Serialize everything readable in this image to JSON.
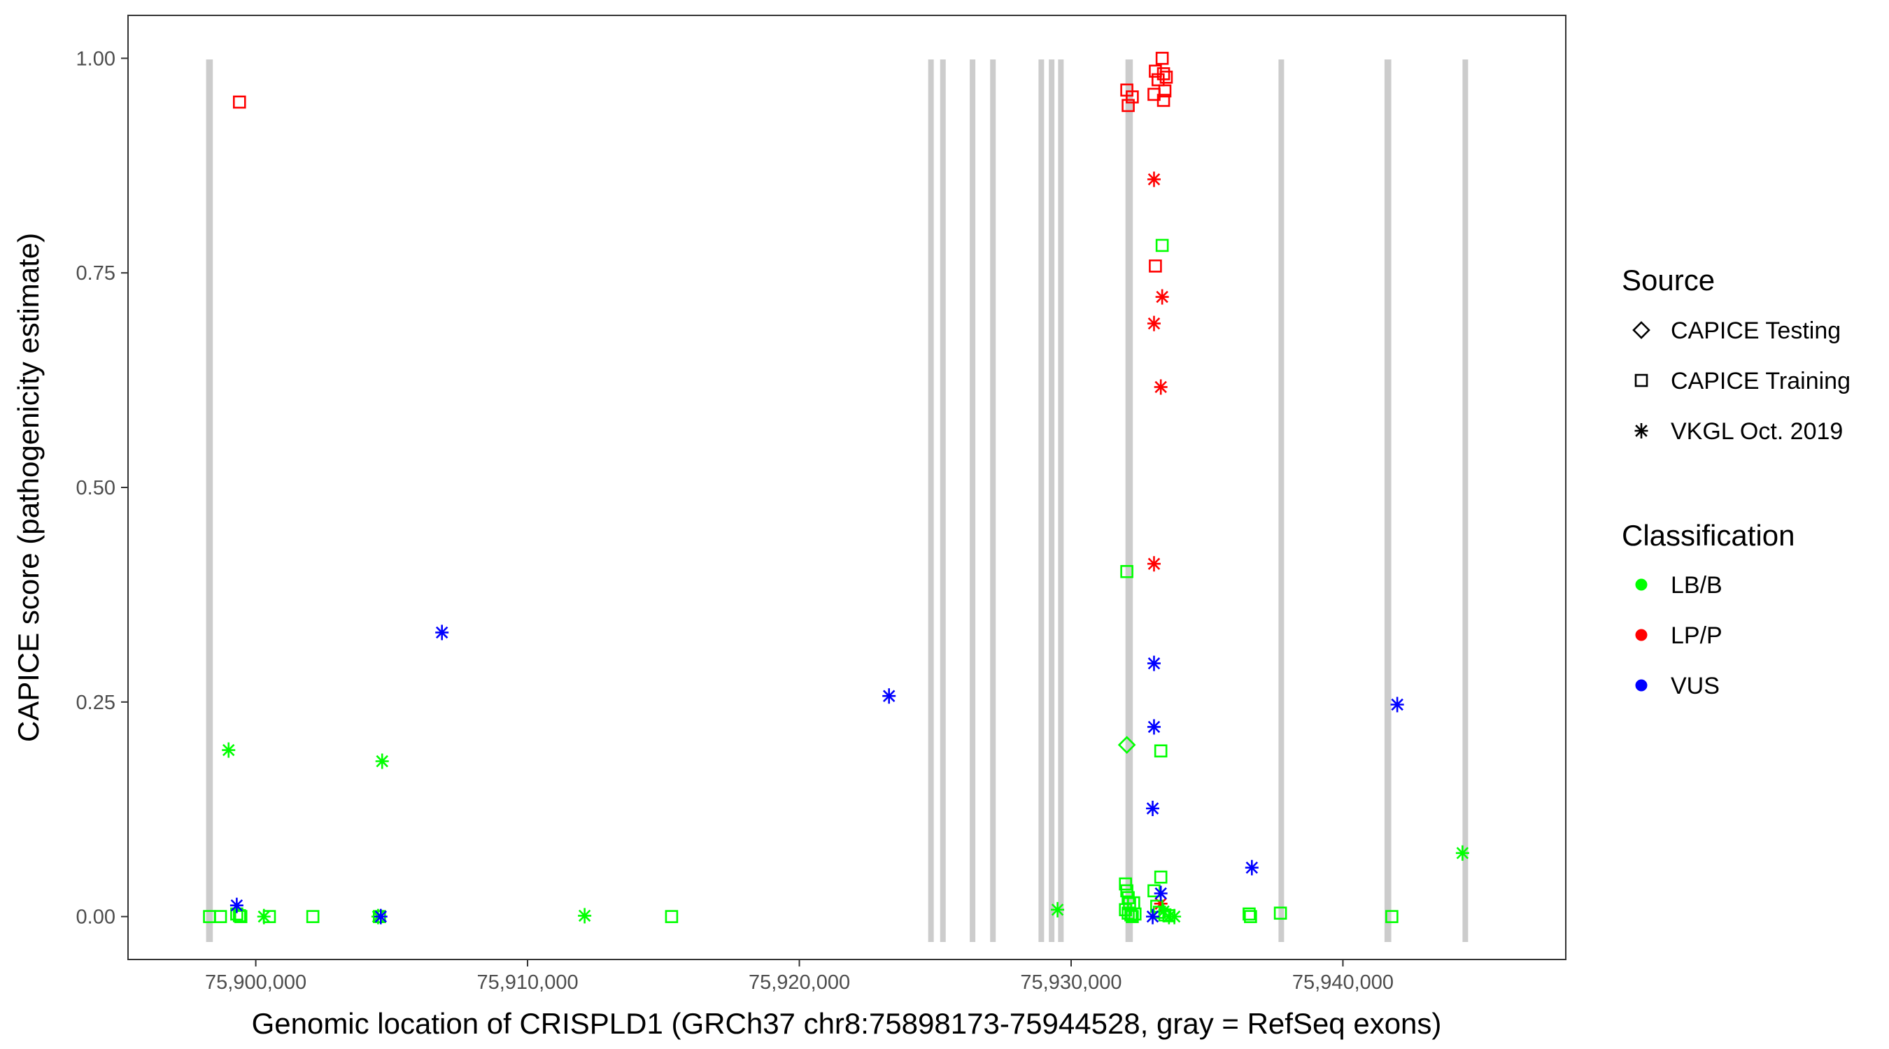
{
  "chart_data": {
    "type": "scatter",
    "title": "",
    "xlabel": "Genomic location of CRISPLD1 (GRCh37 chr8:75898173-75944528, gray = RefSeq exons)",
    "ylabel": "CAPICE score (pathogenicity estimate)",
    "xlim": [
      75895300,
      75948200
    ],
    "ylim": [
      -0.05,
      1.05
    ],
    "x_ticks": [
      75900000,
      75910000,
      75920000,
      75930000,
      75940000
    ],
    "x_tick_labels": [
      "75,900,000",
      "75,910,000",
      "75,920,000",
      "75,930,000",
      "75,940,000"
    ],
    "y_ticks": [
      0,
      0.25,
      0.5,
      0.75,
      1
    ],
    "y_tick_labels": [
      "0.00",
      "0.25",
      "0.50",
      "0.75",
      "1.00"
    ],
    "grid": false,
    "exons": [
      [
        75898173,
        75898420
      ],
      [
        75924740,
        75924900
      ],
      [
        75925180,
        75925360
      ],
      [
        75926270,
        75926440
      ],
      [
        75927020,
        75927180
      ],
      [
        75928800,
        75928980
      ],
      [
        75929180,
        75929360
      ],
      [
        75929520,
        75929700
      ],
      [
        75932000,
        75932270
      ],
      [
        75937630,
        75937790
      ],
      [
        75941530,
        75941780
      ],
      [
        75944400,
        75944528
      ]
    ],
    "legend": {
      "position": "right",
      "source_title": "Source",
      "source_items": [
        {
          "label": "CAPICE Testing",
          "shape": "diamond"
        },
        {
          "label": "CAPICE Training",
          "shape": "square"
        },
        {
          "label": "VKGL Oct. 2019",
          "shape": "asterisk"
        }
      ],
      "class_title": "Classification",
      "class_items": [
        {
          "label": "LB/B",
          "color": "#00ff00"
        },
        {
          "label": "LP/P",
          "color": "#ff0000"
        },
        {
          "label": "VUS",
          "color": "#0000ff"
        }
      ]
    },
    "colors": {
      "LB/B": "#00ff00",
      "LP/P": "#ff0000",
      "VUS": "#0000ff",
      "exon": "#cccccc"
    },
    "points": [
      {
        "x": 75899400,
        "y": 0.949,
        "source": "CAPICE Training",
        "class": "LP/P"
      },
      {
        "x": 75932050,
        "y": 0.963,
        "source": "CAPICE Training",
        "class": "LP/P"
      },
      {
        "x": 75932100,
        "y": 0.945,
        "source": "CAPICE Training",
        "class": "LP/P"
      },
      {
        "x": 75932250,
        "y": 0.955,
        "source": "CAPICE Training",
        "class": "LP/P"
      },
      {
        "x": 75933050,
        "y": 0.958,
        "source": "CAPICE Training",
        "class": "LP/P"
      },
      {
        "x": 75933100,
        "y": 0.985,
        "source": "CAPICE Training",
        "class": "LP/P"
      },
      {
        "x": 75933200,
        "y": 0.975,
        "source": "CAPICE Training",
        "class": "LP/P"
      },
      {
        "x": 75933350,
        "y": 1.0,
        "source": "CAPICE Training",
        "class": "LP/P"
      },
      {
        "x": 75933400,
        "y": 0.982,
        "source": "CAPICE Training",
        "class": "LP/P"
      },
      {
        "x": 75933450,
        "y": 0.962,
        "source": "CAPICE Training",
        "class": "LP/P"
      },
      {
        "x": 75933400,
        "y": 0.951,
        "source": "CAPICE Training",
        "class": "LP/P"
      },
      {
        "x": 75933500,
        "y": 0.978,
        "source": "CAPICE Training",
        "class": "LP/P"
      },
      {
        "x": 75933100,
        "y": 0.758,
        "source": "CAPICE Training",
        "class": "LP/P"
      },
      {
        "x": 75933050,
        "y": 0.859,
        "source": "VKGL Oct. 2019",
        "class": "LP/P"
      },
      {
        "x": 75933350,
        "y": 0.722,
        "source": "VKGL Oct. 2019",
        "class": "LP/P"
      },
      {
        "x": 75933050,
        "y": 0.691,
        "source": "VKGL Oct. 2019",
        "class": "LP/P"
      },
      {
        "x": 75933300,
        "y": 0.617,
        "source": "VKGL Oct. 2019",
        "class": "LP/P"
      },
      {
        "x": 75933050,
        "y": 0.411,
        "source": "VKGL Oct. 2019",
        "class": "LP/P"
      },
      {
        "x": 75933300,
        "y": 0.015,
        "source": "VKGL Oct. 2019",
        "class": "LP/P"
      },
      {
        "x": 75933350,
        "y": 0.782,
        "source": "CAPICE Training",
        "class": "LB/B"
      },
      {
        "x": 75932050,
        "y": 0.402,
        "source": "CAPICE Training",
        "class": "LB/B"
      },
      {
        "x": 75932050,
        "y": 0.2,
        "source": "CAPICE Testing",
        "class": "LB/B"
      },
      {
        "x": 75933300,
        "y": 0.193,
        "source": "CAPICE Training",
        "class": "LB/B"
      },
      {
        "x": 75933300,
        "y": 0.046,
        "source": "CAPICE Training",
        "class": "LB/B"
      },
      {
        "x": 75932000,
        "y": 0.038,
        "source": "CAPICE Training",
        "class": "LB/B"
      },
      {
        "x": 75932050,
        "y": 0.03,
        "source": "CAPICE Training",
        "class": "LB/B"
      },
      {
        "x": 75932100,
        "y": 0.022,
        "source": "CAPICE Training",
        "class": "LB/B"
      },
      {
        "x": 75932150,
        "y": 0.015,
        "source": "CAPICE Training",
        "class": "LB/B"
      },
      {
        "x": 75932300,
        "y": 0.016,
        "source": "CAPICE Training",
        "class": "LB/B"
      },
      {
        "x": 75932000,
        "y": 0.008,
        "source": "CAPICE Training",
        "class": "LB/B"
      },
      {
        "x": 75932100,
        "y": 0.004,
        "source": "CAPICE Training",
        "class": "LB/B"
      },
      {
        "x": 75932200,
        "y": 0.002,
        "source": "CAPICE Training",
        "class": "LB/B"
      },
      {
        "x": 75932250,
        "y": 0.0,
        "source": "CAPICE Training",
        "class": "LB/B"
      },
      {
        "x": 75932350,
        "y": 0.003,
        "source": "CAPICE Training",
        "class": "LB/B"
      },
      {
        "x": 75933050,
        "y": 0.03,
        "source": "CAPICE Training",
        "class": "LB/B"
      },
      {
        "x": 75933150,
        "y": 0.012,
        "source": "CAPICE Training",
        "class": "LB/B"
      },
      {
        "x": 75933250,
        "y": 0.005,
        "source": "CAPICE Training",
        "class": "LB/B"
      },
      {
        "x": 75933450,
        "y": 0.002,
        "source": "CAPICE Training",
        "class": "LB/B"
      },
      {
        "x": 75933600,
        "y": 0.001,
        "source": "CAPICE Training",
        "class": "LB/B"
      },
      {
        "x": 75898300,
        "y": 0.0,
        "source": "CAPICE Training",
        "class": "LB/B"
      },
      {
        "x": 75898700,
        "y": 0.0,
        "source": "CAPICE Training",
        "class": "LB/B"
      },
      {
        "x": 75899300,
        "y": 0.003,
        "source": "CAPICE Training",
        "class": "LB/B"
      },
      {
        "x": 75899400,
        "y": 0.001,
        "source": "CAPICE Training",
        "class": "LB/B"
      },
      {
        "x": 75899450,
        "y": 0.0,
        "source": "CAPICE Training",
        "class": "LB/B"
      },
      {
        "x": 75900500,
        "y": 0.0,
        "source": "CAPICE Training",
        "class": "LB/B"
      },
      {
        "x": 75902100,
        "y": 0.0,
        "source": "CAPICE Training",
        "class": "LB/B"
      },
      {
        "x": 75904550,
        "y": 0.0,
        "source": "CAPICE Training",
        "class": "LB/B"
      },
      {
        "x": 75915300,
        "y": 0.0,
        "source": "CAPICE Training",
        "class": "LB/B"
      },
      {
        "x": 75936550,
        "y": 0.003,
        "source": "CAPICE Training",
        "class": "LB/B"
      },
      {
        "x": 75936600,
        "y": 0.0,
        "source": "CAPICE Training",
        "class": "LB/B"
      },
      {
        "x": 75937700,
        "y": 0.004,
        "source": "CAPICE Training",
        "class": "LB/B"
      },
      {
        "x": 75941800,
        "y": 0.0,
        "source": "CAPICE Training",
        "class": "LB/B"
      },
      {
        "x": 75899000,
        "y": 0.194,
        "source": "VKGL Oct. 2019",
        "class": "LB/B"
      },
      {
        "x": 75904650,
        "y": 0.181,
        "source": "VKGL Oct. 2019",
        "class": "LB/B"
      },
      {
        "x": 75900300,
        "y": 0.0,
        "source": "VKGL Oct. 2019",
        "class": "LB/B"
      },
      {
        "x": 75904500,
        "y": 0.0,
        "source": "VKGL Oct. 2019",
        "class": "LB/B"
      },
      {
        "x": 75912100,
        "y": 0.001,
        "source": "VKGL Oct. 2019",
        "class": "LB/B"
      },
      {
        "x": 75929500,
        "y": 0.008,
        "source": "VKGL Oct. 2019",
        "class": "LB/B"
      },
      {
        "x": 75933400,
        "y": 0.006,
        "source": "VKGL Oct. 2019",
        "class": "LB/B"
      },
      {
        "x": 75933600,
        "y": 0.0,
        "source": "VKGL Oct. 2019",
        "class": "LB/B"
      },
      {
        "x": 75933800,
        "y": 0.0,
        "source": "VKGL Oct. 2019",
        "class": "LB/B"
      },
      {
        "x": 75944400,
        "y": 0.074,
        "source": "VKGL Oct. 2019",
        "class": "LB/B"
      },
      {
        "x": 75899300,
        "y": 0.013,
        "source": "VKGL Oct. 2019",
        "class": "VUS"
      },
      {
        "x": 75904600,
        "y": 0.0,
        "source": "VKGL Oct. 2019",
        "class": "VUS"
      },
      {
        "x": 75906850,
        "y": 0.331,
        "source": "VKGL Oct. 2019",
        "class": "VUS"
      },
      {
        "x": 75923300,
        "y": 0.257,
        "source": "VKGL Oct. 2019",
        "class": "VUS"
      },
      {
        "x": 75933050,
        "y": 0.295,
        "source": "VKGL Oct. 2019",
        "class": "VUS"
      },
      {
        "x": 75933050,
        "y": 0.221,
        "source": "VKGL Oct. 2019",
        "class": "VUS"
      },
      {
        "x": 75933000,
        "y": 0.126,
        "source": "VKGL Oct. 2019",
        "class": "VUS"
      },
      {
        "x": 75933300,
        "y": 0.027,
        "source": "VKGL Oct. 2019",
        "class": "VUS"
      },
      {
        "x": 75933000,
        "y": 0.0,
        "source": "VKGL Oct. 2019",
        "class": "VUS"
      },
      {
        "x": 75936650,
        "y": 0.057,
        "source": "VKGL Oct. 2019",
        "class": "VUS"
      },
      {
        "x": 75942000,
        "y": 0.247,
        "source": "VKGL Oct. 2019",
        "class": "VUS"
      }
    ]
  }
}
